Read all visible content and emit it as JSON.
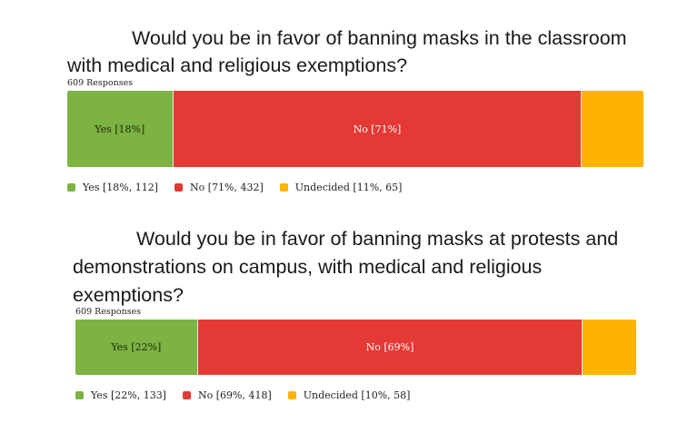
{
  "colors": {
    "yes": "#7cb342",
    "no": "#e53935",
    "undecided": "#ffb300"
  },
  "chart_data": [
    {
      "type": "bar",
      "orientation": "horizontal-stacked-100",
      "title_lines": [
        "Would you be in favor of banning masks in the classroom",
        "with medical and religious exemptions?"
      ],
      "responses_label": "609 Responses",
      "categories": [
        "Yes",
        "No",
        "Undecided"
      ],
      "values": [
        112,
        432,
        65
      ],
      "percents": [
        18,
        71,
        11
      ],
      "bar_labels": [
        "Yes [18%]",
        "No [71%]",
        ""
      ],
      "legend": [
        "Yes [18%, 112]",
        "No [71%, 432]",
        "Undecided [11%, 65]"
      ]
    },
    {
      "type": "bar",
      "orientation": "horizontal-stacked-100",
      "title_lines": [
        "Would you be in favor of banning masks at protests and",
        "demonstrations on campus, with medical and religious",
        "exemptions?"
      ],
      "responses_label": "609 Responses",
      "categories": [
        "Yes",
        "No",
        "Undecided"
      ],
      "values": [
        133,
        418,
        58
      ],
      "percents": [
        22,
        69,
        10
      ],
      "bar_labels": [
        "Yes [22%]",
        "No [69%]",
        ""
      ],
      "legend": [
        "Yes [22%, 133]",
        "No [69%, 418]",
        "Undecided [10%, 58]"
      ]
    }
  ]
}
